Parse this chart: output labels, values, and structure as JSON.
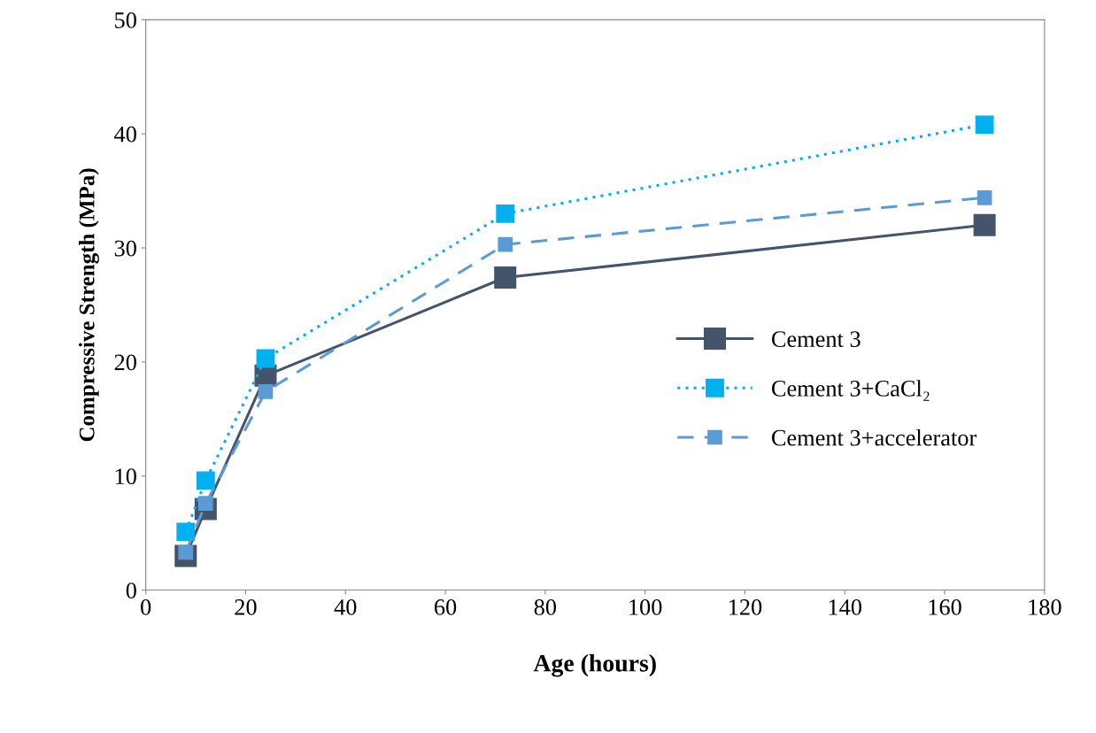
{
  "chart_data": {
    "type": "line",
    "xlabel": "Age (hours)",
    "ylabel": "Compressive Strength (MPa)",
    "x": [
      8,
      12,
      24,
      72,
      168
    ],
    "series": [
      {
        "name": "Cement 3",
        "color": "#44546a",
        "line_style": "solid",
        "values": [
          3.0,
          7.1,
          18.8,
          27.4,
          32.0
        ]
      },
      {
        "name": "Cement 3+CaCl₂",
        "color": "#00b0f0",
        "line_style": "dotted",
        "values": [
          5.1,
          9.6,
          20.3,
          33.0,
          40.8
        ]
      },
      {
        "name": "Cement 3+accelerator",
        "color": "#5b9bd5",
        "line_style": "dashed",
        "values": [
          3.3,
          7.6,
          17.4,
          30.3,
          34.4
        ]
      }
    ],
    "marker": "square",
    "xlim": [
      0,
      180
    ],
    "xticks": [
      0,
      20,
      40,
      60,
      80,
      100,
      120,
      140,
      160,
      180
    ],
    "ylim": [
      0,
      50
    ],
    "yticks": [
      0,
      10,
      20,
      30,
      40,
      50
    ],
    "grid": false,
    "legend": "right"
  }
}
